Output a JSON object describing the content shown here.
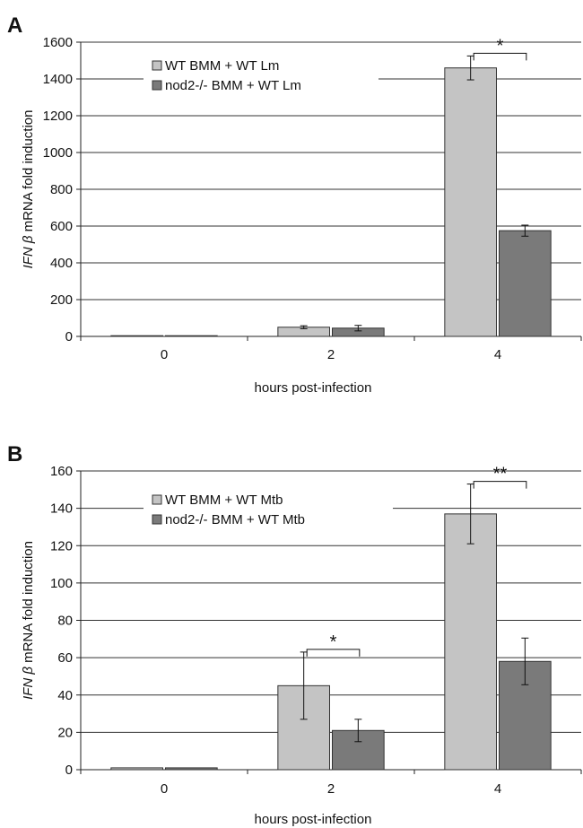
{
  "figure": {
    "panels": [
      "A",
      "B"
    ]
  },
  "chart_data": [
    {
      "type": "bar",
      "panel_label": "A",
      "title": "",
      "xlabel": "hours post-infection",
      "ylabel_italic": "IFN β",
      "ylabel_rest": " mRNA fold induction",
      "categories": [
        "0",
        "2",
        "4"
      ],
      "ylim": [
        0,
        1600
      ],
      "yticks": [
        0,
        200,
        400,
        600,
        800,
        1000,
        1200,
        1400,
        1600
      ],
      "grid": true,
      "legend_position": "top-left",
      "series": [
        {
          "name": "WT BMM + WT Lm",
          "color": "#c4c4c4",
          "values": [
            1,
            50,
            1460
          ],
          "errors": [
            0,
            8,
            65
          ]
        },
        {
          "name": "nod2-/- BMM + WT Lm",
          "color": "#7a7a7a",
          "values": [
            1,
            45,
            575
          ],
          "errors": [
            0,
            15,
            30
          ]
        }
      ],
      "annotations": [
        {
          "category_index": 2,
          "text": "*"
        }
      ]
    },
    {
      "type": "bar",
      "panel_label": "B",
      "title": "",
      "xlabel": "hours post-infection",
      "ylabel_italic": "IFN β",
      "ylabel_rest": " mRNA fold induction",
      "categories": [
        "0",
        "2",
        "4"
      ],
      "ylim": [
        0,
        160
      ],
      "yticks": [
        0,
        20,
        40,
        60,
        80,
        100,
        120,
        140,
        160
      ],
      "grid": true,
      "legend_position": "top-left",
      "series": [
        {
          "name": "WT BMM + WT Mtb",
          "color": "#c4c4c4",
          "values": [
            1,
            45,
            137
          ],
          "errors": [
            0,
            18,
            16
          ]
        },
        {
          "name": "nod2-/- BMM + WT Mtb",
          "color": "#7a7a7a",
          "values": [
            1,
            21,
            58
          ],
          "errors": [
            0,
            6,
            12.5
          ]
        }
      ],
      "annotations": [
        {
          "category_index": 1,
          "text": "*"
        },
        {
          "category_index": 2,
          "text": "**"
        }
      ]
    }
  ]
}
